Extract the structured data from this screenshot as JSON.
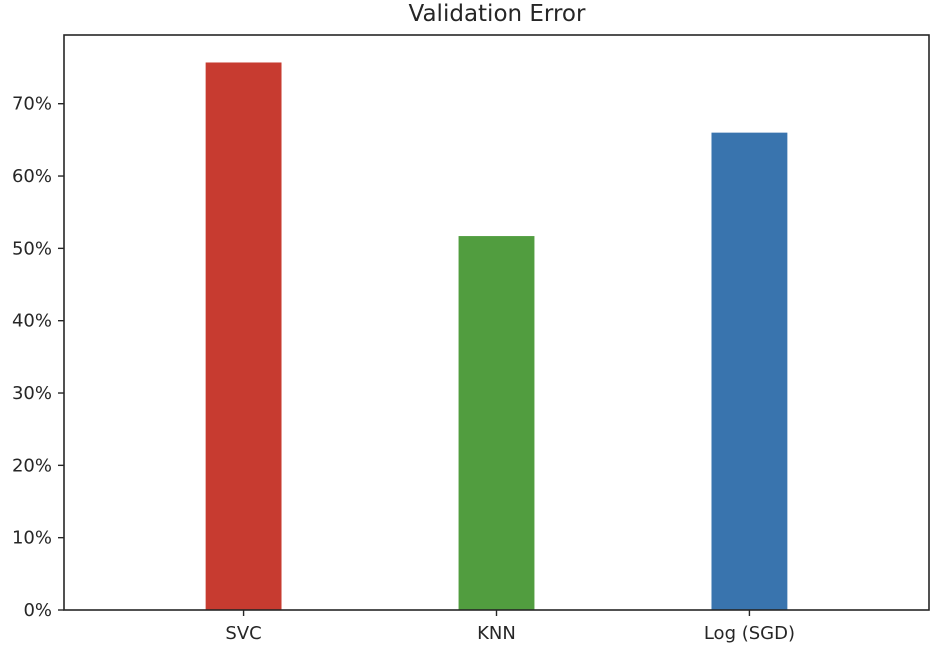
{
  "chart_data": {
    "type": "bar",
    "title": "Validation Error",
    "xlabel": "",
    "ylabel": "",
    "categories": [
      "SVC",
      "KNN",
      "Log (SGD)"
    ],
    "values": [
      75.7,
      51.7,
      66.0
    ],
    "colors": [
      "#c73b30",
      "#519d3f",
      "#3974ae"
    ],
    "ylim": [
      0,
      79.5
    ],
    "yticks": [
      0,
      10,
      20,
      30,
      40,
      50,
      60,
      70
    ],
    "ytick_labels": [
      "0%",
      "10%",
      "20%",
      "30%",
      "40%",
      "50%",
      "60%",
      "70%"
    ],
    "grid": false,
    "legend": "none"
  }
}
